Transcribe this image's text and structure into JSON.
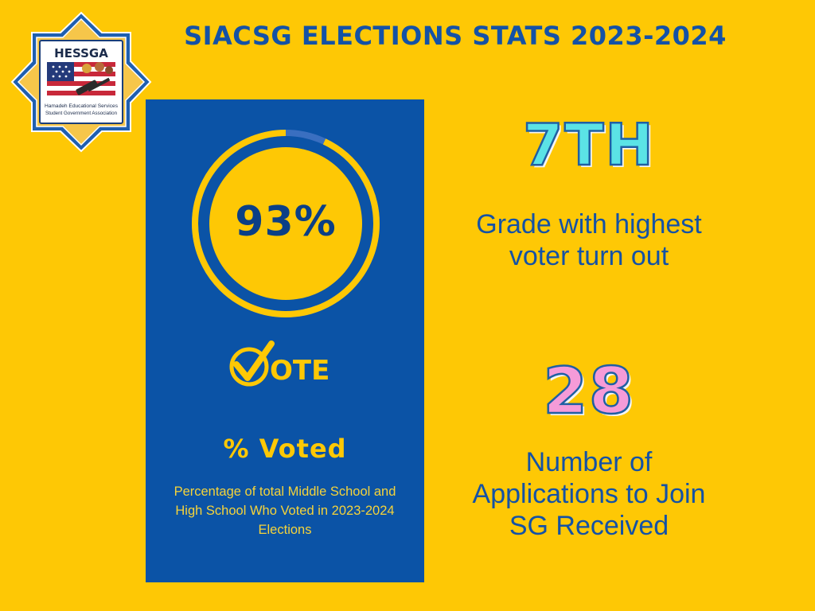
{
  "title": "SIACSG ELECTIONS STATS 2023-2024",
  "logo": {
    "acronym": "HESSGA",
    "line1": "Hamadeh Educational Services",
    "line2": "Student Government Association"
  },
  "voted": {
    "value_text": "93%",
    "fraction": 0.93,
    "vote_logo_text": "OTE",
    "label": "% Voted",
    "description": "Percentage of total Middle School and High School Who Voted in 2023-2024 Elections"
  },
  "stats": [
    {
      "value": "7TH",
      "caption_lines": [
        "Grade with highest",
        "voter turn out"
      ]
    },
    {
      "value": "28",
      "caption_lines": [
        "Number of",
        "Applications to Join",
        "SG Received"
      ]
    }
  ],
  "colors": {
    "background": "#FEC805",
    "panel": "#0B53A6",
    "title": "#1452A6",
    "gold": "#FEC805",
    "cyan": "#5BE3E6",
    "pink": "#F59BD8"
  }
}
